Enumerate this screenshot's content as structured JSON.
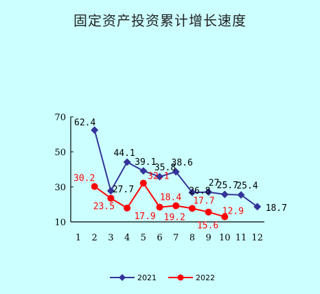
{
  "chart_data": {
    "type": "line",
    "title": "固定资产投资累计增长速度",
    "x": [
      1,
      2,
      3,
      4,
      5,
      6,
      7,
      8,
      9,
      10,
      11,
      12
    ],
    "ylim": [
      10,
      70
    ],
    "yticks": [
      10,
      30,
      50,
      70
    ],
    "grid": false,
    "legend": "bottom",
    "series": [
      {
        "name": "2021",
        "color": "#333399",
        "marker": "diamond",
        "points": [
          {
            "x": 2,
            "y": 62.4,
            "label": "62.4"
          },
          {
            "x": 3,
            "y": 27.7,
            "label": "27.7"
          },
          {
            "x": 4,
            "y": 44.1,
            "label": "44.1"
          },
          {
            "x": 5,
            "y": 39.1,
            "label": "39.1"
          },
          {
            "x": 6,
            "y": 35.8,
            "label": "35.8"
          },
          {
            "x": 7,
            "y": 38.6,
            "label": "38.6"
          },
          {
            "x": 8,
            "y": 26.8,
            "label": "26.8"
          },
          {
            "x": 9,
            "y": 27,
            "label": "27"
          },
          {
            "x": 10,
            "y": 25.7,
            "label": "25.7"
          },
          {
            "x": 11,
            "y": 25.4,
            "label": "25.4"
          },
          {
            "x": 12,
            "y": 18.7,
            "label": "18.7"
          }
        ]
      },
      {
        "name": "2022",
        "color": "#ff0000",
        "marker": "circle",
        "points": [
          {
            "x": 2,
            "y": 30.2,
            "label": "30.2"
          },
          {
            "x": 3,
            "y": 23.5,
            "label": "23.5"
          },
          {
            "x": 4,
            "y": 17.9,
            "label": "17.9"
          },
          {
            "x": 5,
            "y": 32.1,
            "label": "32.1"
          },
          {
            "x": 6,
            "y": 18.4,
            "label": "18.4"
          },
          {
            "x": 7,
            "y": 19.2,
            "label": "19.2"
          },
          {
            "x": 8,
            "y": 17.7,
            "label": "17.7"
          },
          {
            "x": 9,
            "y": 15.6,
            "label": "15.6"
          },
          {
            "x": 10,
            "y": 12.9,
            "label": "12.9"
          }
        ]
      }
    ]
  }
}
